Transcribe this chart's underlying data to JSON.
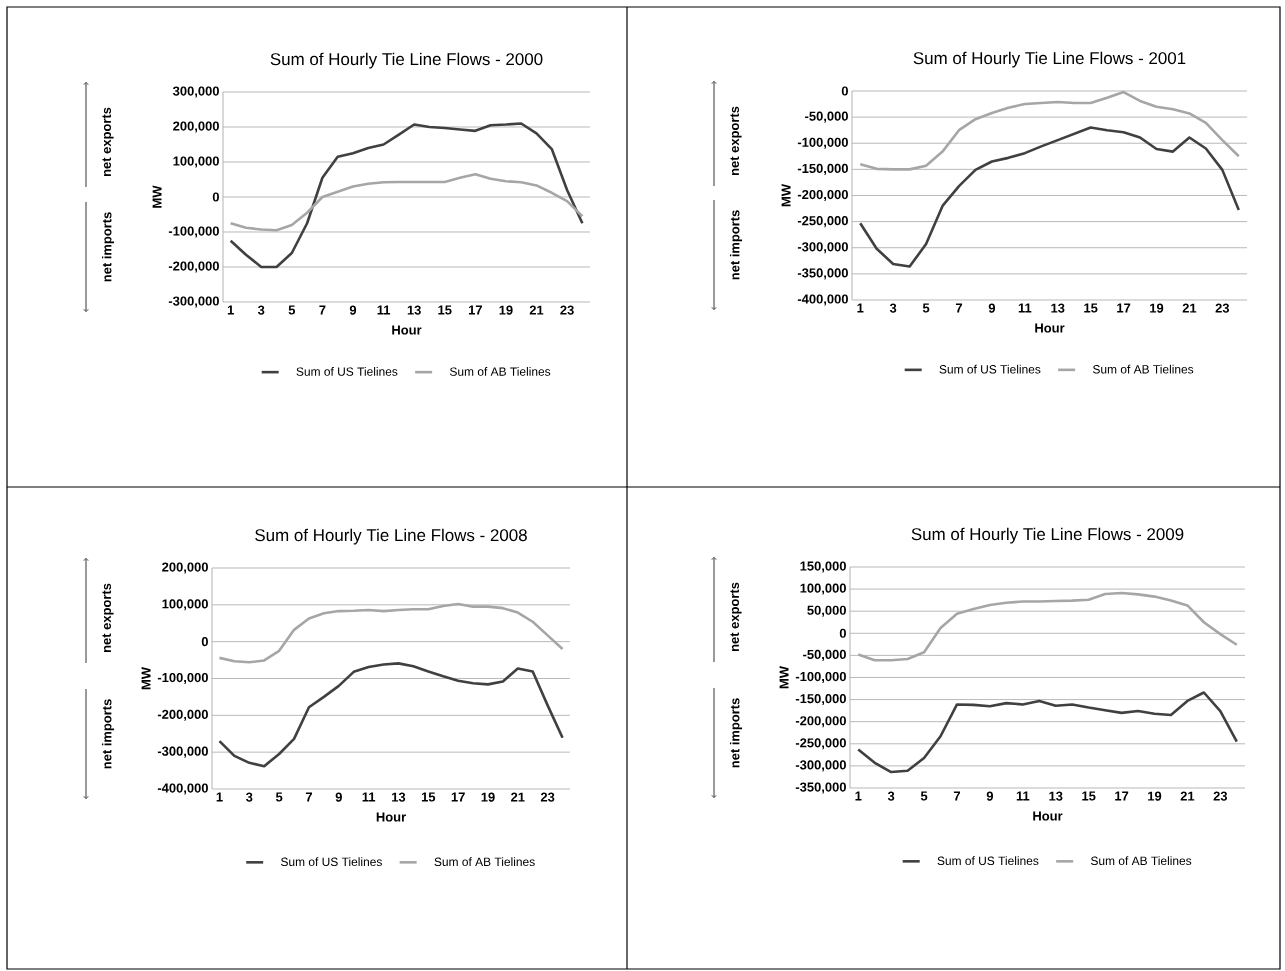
{
  "chart_data": [
    {
      "type": "line",
      "title": "Sum of Hourly Tie Line Flows - 2000",
      "xlabel": "Hour",
      "ylabel": "MW",
      "annotations": [
        "net exports",
        "net imports"
      ],
      "categories": [
        "1",
        null,
        "3",
        null,
        "5",
        null,
        "7",
        null,
        "9",
        null,
        "11",
        null,
        "13",
        null,
        "15",
        null,
        "17",
        null,
        "19",
        null,
        "21",
        null,
        "23",
        null
      ],
      "series": [
        {
          "name": "Sum of US Tielines",
          "color": "#404040",
          "values": [
            -125000,
            -165000,
            -200000,
            -200000,
            -160000,
            -75000,
            55000,
            115000,
            125000,
            140000,
            150000,
            178000,
            207000,
            200000,
            197000,
            193000,
            189000,
            205000,
            207000,
            210000,
            182000,
            137000,
            20000,
            -75000
          ]
        },
        {
          "name": "Sum of AB Tielines",
          "color": "#a6a6a6",
          "values": [
            -75000,
            -88000,
            -93000,
            -95000,
            -80000,
            -45000,
            0,
            15000,
            30000,
            38000,
            42000,
            43000,
            43000,
            43000,
            43000,
            55000,
            65000,
            52000,
            45000,
            42000,
            33000,
            12000,
            -12000,
            -55000
          ]
        }
      ],
      "ylim": [
        -300000,
        300000
      ],
      "yticks": [
        {
          "value": -300000,
          "label": "-300,000"
        },
        {
          "value": -200000,
          "label": "-200,000"
        },
        {
          "value": -100000,
          "label": "-100,000"
        },
        0,
        {
          "value": 100000,
          "label": "100,000"
        },
        {
          "value": 200000,
          "label": "200,000"
        },
        {
          "value": 300000,
          "label": "300,000"
        }
      ],
      "grid": "y",
      "legend": "bottom",
      "line_style": "solid",
      "marker": "none"
    },
    {
      "type": "line",
      "title": "Sum of Hourly Tie Line Flows - 2001",
      "xlabel": "Hour",
      "ylabel": "MW",
      "annotations": [
        "net exports",
        "net imports"
      ],
      "categories": [
        "1",
        null,
        "3",
        null,
        "5",
        null,
        "7",
        null,
        "9",
        null,
        "11",
        null,
        "13",
        null,
        "15",
        null,
        "17",
        null,
        "19",
        null,
        "21",
        null,
        "23",
        null
      ],
      "series": [
        {
          "name": "Sum of US Tielines",
          "color": "#404040",
          "values": [
            -253000,
            -302000,
            -331000,
            -336000,
            -293000,
            -220000,
            -182000,
            -151000,
            -135000,
            -128000,
            -119000,
            -106000,
            -94000,
            -82000,
            -70000,
            -75000,
            -79000,
            -89000,
            -111000,
            -116000,
            -89000,
            -110000,
            -151000,
            -228000
          ]
        },
        {
          "name": "Sum of AB Tielines",
          "color": "#a6a6a6",
          "values": [
            -140000,
            -149000,
            -150000,
            -150000,
            -143000,
            -116000,
            -75000,
            -54000,
            -42000,
            -32000,
            -25000,
            -23000,
            -21000,
            -23000,
            -23000,
            -13000,
            -2000,
            -19000,
            -30000,
            -35000,
            -43000,
            -61000,
            -94000,
            -125000
          ]
        }
      ],
      "ylim": [
        -400000,
        0
      ],
      "yticks": [
        {
          "value": -400000,
          "label": "-400,000"
        },
        {
          "value": -350000,
          "label": "-350,000"
        },
        {
          "value": -300000,
          "label": "-300,000"
        },
        {
          "value": -250000,
          "label": "-250,000"
        },
        {
          "value": -200000,
          "label": "-200,000"
        },
        {
          "value": -150000,
          "label": "-150,000"
        },
        {
          "value": -100000,
          "label": "-100,000"
        },
        {
          "value": -50000,
          "label": "-50,000"
        },
        0
      ],
      "grid": "y",
      "legend": "bottom",
      "line_style": "solid",
      "marker": "none"
    },
    {
      "type": "line",
      "title": "Sum of Hourly Tie Line Flows - 2008",
      "xlabel": "Hour",
      "ylabel": "MW",
      "annotations": [
        "net exports",
        "net imports"
      ],
      "categories": [
        "1",
        null,
        "3",
        null,
        "5",
        null,
        "7",
        null,
        "9",
        null,
        "11",
        null,
        "13",
        null,
        "15",
        null,
        "17",
        null,
        "19",
        null,
        "21",
        null,
        "23",
        null
      ],
      "series": [
        {
          "name": "Sum of US Tielines",
          "color": "#404040",
          "values": [
            -270000,
            -310000,
            -329000,
            -338000,
            -305000,
            -264000,
            -178000,
            -150000,
            -120000,
            -82000,
            -69000,
            -62000,
            -59000,
            -67000,
            -81000,
            -94000,
            -106000,
            -113000,
            -116000,
            -108000,
            -73000,
            -81000,
            -173000,
            -261000
          ]
        },
        {
          "name": "Sum of AB Tielines",
          "color": "#a6a6a6",
          "values": [
            -44000,
            -53000,
            -56000,
            -51000,
            -25000,
            32000,
            63000,
            77000,
            83000,
            84000,
            86000,
            83000,
            86000,
            88000,
            88000,
            97000,
            102000,
            95000,
            95000,
            91000,
            79000,
            54000,
            17000,
            -20000
          ]
        }
      ],
      "ylim": [
        -400000,
        200000
      ],
      "yticks": [
        {
          "value": -400000,
          "label": "-400,000"
        },
        {
          "value": -300000,
          "label": "-300,000"
        },
        {
          "value": -200000,
          "label": "-200,000"
        },
        {
          "value": -100000,
          "label": "-100,000"
        },
        0,
        {
          "value": 100000,
          "label": "100,000"
        },
        {
          "value": 200000,
          "label": "200,000"
        }
      ],
      "grid": "y",
      "legend": "bottom",
      "line_style": "solid",
      "marker": "none"
    },
    {
      "type": "line",
      "title": "Sum of Hourly Tie Line Flows - 2009",
      "xlabel": "Hour",
      "ylabel": "MW",
      "annotations": [
        "net exports",
        "net imports"
      ],
      "categories": [
        "1",
        null,
        "3",
        null,
        "5",
        null,
        "7",
        null,
        "9",
        null,
        "11",
        null,
        "13",
        null,
        "15",
        null,
        "17",
        null,
        "19",
        null,
        "21",
        null,
        "23",
        null
      ],
      "series": [
        {
          "name": "Sum of US Tielines",
          "color": "#404040",
          "values": [
            -263000,
            -293000,
            -314000,
            -311000,
            -282000,
            -233000,
            -161000,
            -162000,
            -165000,
            -158000,
            -161000,
            -153000,
            -164000,
            -161000,
            -168000,
            -174000,
            -180000,
            -176000,
            -182000,
            -185000,
            -153000,
            -134000,
            -176000,
            -245000
          ]
        },
        {
          "name": "Sum of AB Tielines",
          "color": "#a6a6a6",
          "values": [
            -48000,
            -61000,
            -61000,
            -58000,
            -43000,
            12000,
            44000,
            55000,
            64000,
            69000,
            72000,
            72000,
            73000,
            74000,
            76000,
            89000,
            91000,
            88000,
            83000,
            74000,
            63000,
            25000,
            -2000,
            -26000
          ]
        }
      ],
      "ylim": [
        -350000,
        150000
      ],
      "yticks": [
        {
          "value": -350000,
          "label": "-350,000"
        },
        {
          "value": -300000,
          "label": "-300,000"
        },
        {
          "value": -250000,
          "label": "-250,000"
        },
        {
          "value": -200000,
          "label": "-200,000"
        },
        {
          "value": -150000,
          "label": "-150,000"
        },
        {
          "value": -100000,
          "label": "-100,000"
        },
        {
          "value": -50000,
          "label": "-50,000"
        },
        0,
        {
          "value": 50000,
          "label": "50,000"
        },
        {
          "value": 100000,
          "label": "100,000"
        },
        {
          "value": 150000,
          "label": "150,000"
        }
      ],
      "grid": "y",
      "legend": "bottom",
      "line_style": "solid",
      "marker": "none"
    }
  ]
}
